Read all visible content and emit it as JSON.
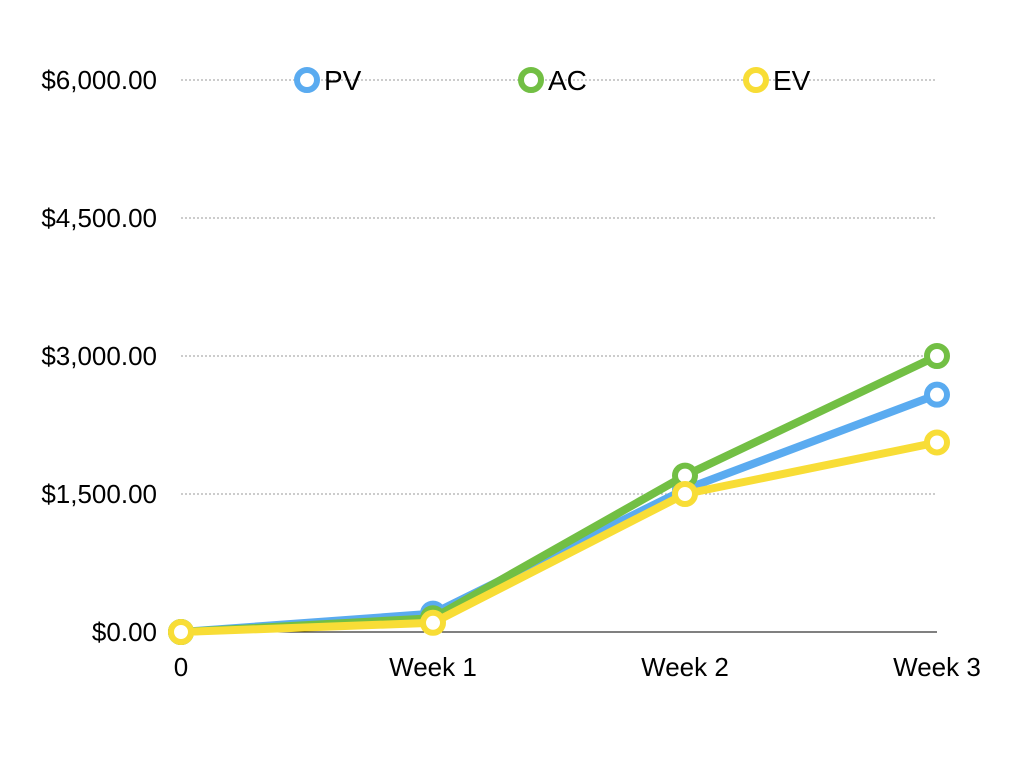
{
  "chart_data": {
    "type": "line",
    "title": "",
    "xlabel": "",
    "ylabel": "",
    "categories": [
      "0",
      "Week 1",
      "Week 2",
      "Week 3"
    ],
    "ylim": [
      0,
      6000
    ],
    "yticks": [
      0,
      1500,
      3000,
      4500,
      6000
    ],
    "ytick_labels": [
      "$0.00",
      "$1,500.00",
      "$3,000.00",
      "$4,500.00",
      "$6,000.00"
    ],
    "grid": true,
    "legend_position": "top",
    "series": [
      {
        "name": "PV",
        "color": "#5aabf0",
        "values": [
          0,
          200,
          1550,
          2580
        ]
      },
      {
        "name": "AC",
        "color": "#72bf44",
        "values": [
          0,
          150,
          1700,
          3000
        ]
      },
      {
        "name": "EV",
        "color": "#f8dd36",
        "values": [
          0,
          100,
          1500,
          2060
        ]
      }
    ]
  }
}
